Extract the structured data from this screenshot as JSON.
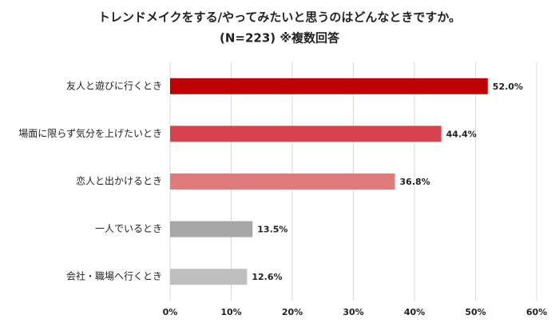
{
  "chart_data": {
    "type": "bar",
    "orientation": "horizontal",
    "title": "トレンドメイクをする/やってみたいと思うのはどんなときですか。",
    "subtitle": "(N=223) ※複数回答",
    "categories": [
      "友人と遊びに行くとき",
      "場面に限らず気分を上げたいとき",
      "恋人と出かけるとき",
      "一人でいるとき",
      "会社・職場へ行くとき"
    ],
    "values": [
      52.0,
      44.4,
      36.8,
      13.5,
      12.6
    ],
    "value_labels": [
      "52.0%",
      "44.4%",
      "36.8%",
      "13.5%",
      "12.6%"
    ],
    "colors": [
      "#c00000",
      "#d6434c",
      "#e07b7b",
      "#a6a6a6",
      "#bfbfbf"
    ],
    "xlim": [
      0,
      60
    ],
    "xticks": [
      {
        "value": 0,
        "label": "0%"
      },
      {
        "value": 10,
        "label": "10%"
      },
      {
        "value": 20,
        "label": "20%"
      },
      {
        "value": 30,
        "label": "30%"
      },
      {
        "value": 40,
        "label": "40%"
      },
      {
        "value": 50,
        "label": "50%"
      },
      {
        "value": 60,
        "label": "60%"
      }
    ],
    "grid": true
  }
}
